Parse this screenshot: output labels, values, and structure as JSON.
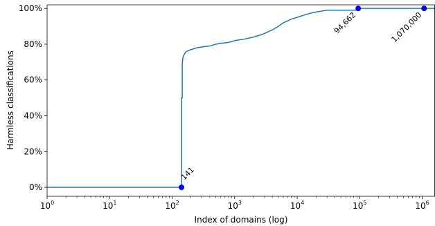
{
  "chart_data": {
    "type": "line",
    "title": "",
    "xlabel": "Index of domains (log)",
    "ylabel": "Harmless classifications",
    "x_scale": "log",
    "xlim": [
      1,
      1600000
    ],
    "ylim": [
      -5,
      102
    ],
    "x_ticks": [
      {
        "value": 1,
        "base": "10",
        "exp": "0"
      },
      {
        "value": 10,
        "base": "10",
        "exp": "1"
      },
      {
        "value": 100,
        "base": "10",
        "exp": "2"
      },
      {
        "value": 1000,
        "base": "10",
        "exp": "3"
      },
      {
        "value": 10000,
        "base": "10",
        "exp": "4"
      },
      {
        "value": 100000,
        "base": "10",
        "exp": "5"
      },
      {
        "value": 1000000,
        "base": "10",
        "exp": "6"
      }
    ],
    "y_ticks": [
      {
        "value": 0,
        "label": "0%"
      },
      {
        "value": 20,
        "label": "20%"
      },
      {
        "value": 40,
        "label": "40%"
      },
      {
        "value": 60,
        "label": "60%"
      },
      {
        "value": 80,
        "label": "80%"
      },
      {
        "value": 100,
        "label": "100%"
      }
    ],
    "grid": false,
    "line_color": "#1f77b4",
    "marker_color": "#0000ff",
    "series": [
      {
        "x": [
          1,
          138,
          141,
          141,
          145,
          145,
          148,
          150,
          155,
          160,
          170,
          185,
          200,
          250,
          300,
          400,
          500,
          600,
          800,
          1000,
          1500,
          2000,
          2500,
          3000,
          4000,
          5000,
          6000,
          7000,
          8000,
          10000,
          15000,
          20000,
          30000,
          50000,
          94662,
          100000,
          200000,
          500000,
          1070000,
          1600000
        ],
        "y": [
          0,
          0,
          0,
          50,
          50,
          69,
          72,
          73,
          74,
          75,
          76,
          76.5,
          77,
          78,
          78.5,
          79,
          80,
          80.5,
          81,
          82,
          83,
          84,
          85,
          86,
          88,
          90,
          92,
          93,
          94,
          95,
          97,
          98,
          99,
          99,
          99,
          100,
          100,
          100,
          100,
          100
        ]
      }
    ],
    "annotations": [
      {
        "x": 141,
        "y": 0,
        "label": "141"
      },
      {
        "x": 94662,
        "y": 100,
        "label": "94,662"
      },
      {
        "x": 1070000,
        "y": 100,
        "label": "1,070,000"
      }
    ]
  }
}
